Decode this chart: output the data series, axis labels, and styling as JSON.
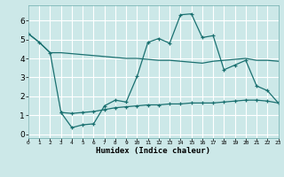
{
  "xlabel": "Humidex (Indice chaleur)",
  "bg_color": "#cce8e8",
  "grid_color": "#ffffff",
  "line_color": "#1a7070",
  "line1_x": [
    0,
    1,
    2,
    3,
    4,
    5,
    6,
    7,
    8,
    9,
    10,
    11,
    12,
    13,
    14,
    15,
    16,
    17,
    18,
    19,
    20,
    21,
    22,
    23
  ],
  "line1_y": [
    5.3,
    4.85,
    4.3,
    4.3,
    4.25,
    4.2,
    4.15,
    4.1,
    4.05,
    4.0,
    4.0,
    3.95,
    3.9,
    3.9,
    3.85,
    3.8,
    3.75,
    3.85,
    3.9,
    3.95,
    4.0,
    3.9,
    3.9,
    3.85
  ],
  "line2_x": [
    0,
    1,
    2,
    3,
    4,
    5,
    6,
    7,
    8,
    9,
    10,
    11,
    12,
    13,
    14,
    15,
    16,
    17,
    18,
    19,
    20,
    21,
    22,
    23
  ],
  "line2_y": [
    5.3,
    4.85,
    4.3,
    1.15,
    0.35,
    0.5,
    0.55,
    1.5,
    1.8,
    1.7,
    3.05,
    4.85,
    5.05,
    4.8,
    6.3,
    6.35,
    5.1,
    5.2,
    3.4,
    3.65,
    3.9,
    2.55,
    2.3,
    1.65
  ],
  "line3_x": [
    3,
    4,
    5,
    6,
    7,
    8,
    9,
    10,
    11,
    12,
    13,
    14,
    15,
    16,
    17,
    18,
    19,
    20,
    21,
    22,
    23
  ],
  "line3_y": [
    1.15,
    1.1,
    1.15,
    1.2,
    1.3,
    1.4,
    1.45,
    1.5,
    1.55,
    1.55,
    1.6,
    1.6,
    1.65,
    1.65,
    1.65,
    1.7,
    1.75,
    1.8,
    1.8,
    1.75,
    1.65
  ],
  "xlim": [
    0,
    23
  ],
  "ylim": [
    -0.2,
    6.8
  ],
  "yticks": [
    0,
    1,
    2,
    3,
    4,
    5,
    6
  ],
  "xtick_labels": [
    "0",
    "1",
    "2",
    "3",
    "4",
    "5",
    "6",
    "7",
    "8",
    "9",
    "10",
    "11",
    "12",
    "13",
    "14",
    "15",
    "16",
    "17",
    "18",
    "19",
    "20",
    "21",
    "22",
    "23"
  ]
}
